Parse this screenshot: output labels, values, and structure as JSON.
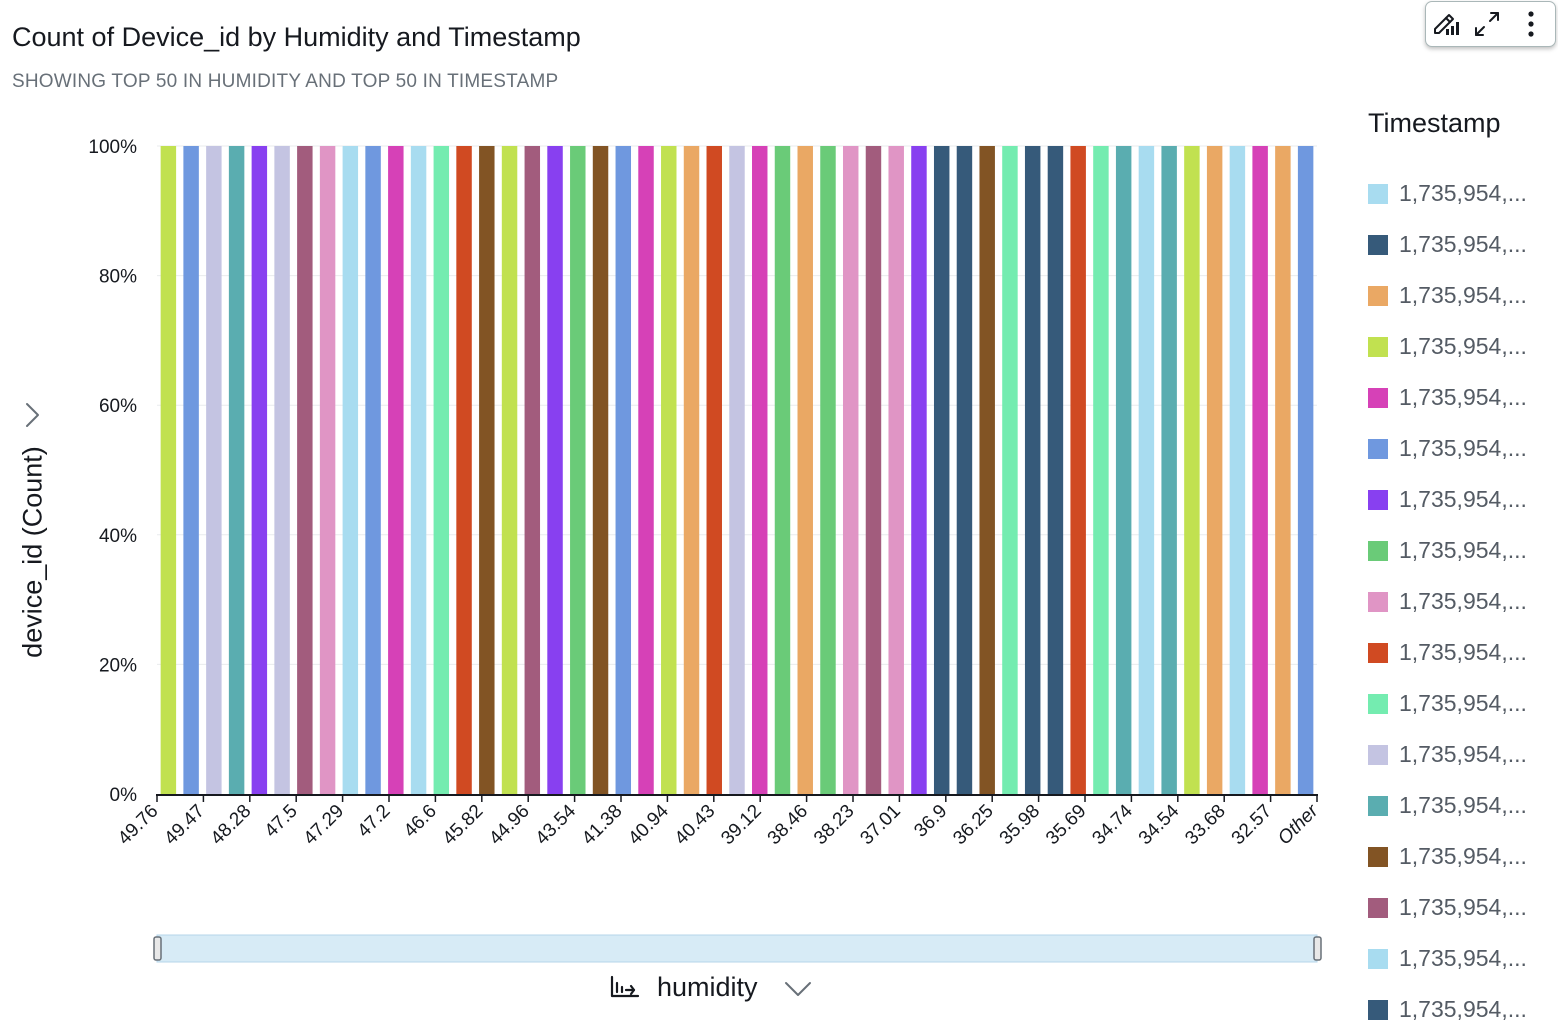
{
  "header": {
    "title": "Count of Device_id by Humidity and Timestamp",
    "subtitle": "SHOWING TOP 50 IN HUMIDITY AND TOP 50 IN TIMESTAMP"
  },
  "toolbar": {
    "icons": [
      "format-visual-icon",
      "expand-icon",
      "more-options-icon"
    ]
  },
  "legend": {
    "title": "Timestamp",
    "items": [
      {
        "label": "1,735,954,...",
        "color": "#a8dcf0"
      },
      {
        "label": "1,735,954,...",
        "color": "#365a7a"
      },
      {
        "label": "1,735,954,...",
        "color": "#eaa864"
      },
      {
        "label": "1,735,954,...",
        "color": "#c1e150"
      },
      {
        "label": "1,735,954,...",
        "color": "#d641b7"
      },
      {
        "label": "1,735,954,...",
        "color": "#6f98df"
      },
      {
        "label": "1,735,954,...",
        "color": "#8840f0"
      },
      {
        "label": "1,735,954,...",
        "color": "#6acb78"
      },
      {
        "label": "1,735,954,...",
        "color": "#e095c5"
      },
      {
        "label": "1,735,954,...",
        "color": "#d04a22"
      },
      {
        "label": "1,735,954,...",
        "color": "#74ecb0"
      },
      {
        "label": "1,735,954,...",
        "color": "#c4c4e2"
      },
      {
        "label": "1,735,954,...",
        "color": "#5aadb0"
      },
      {
        "label": "1,735,954,...",
        "color": "#825424"
      },
      {
        "label": "1,735,954,...",
        "color": "#a25c7d"
      },
      {
        "label": "1,735,954,...",
        "color": "#a8dcf0"
      },
      {
        "label": "1,735,954,...",
        "color": "#365a7a"
      }
    ]
  },
  "x_axis_selector": {
    "label": "humidity",
    "icon": "chart-axis-icon"
  },
  "chart_data": {
    "type": "bar",
    "stacked": "percent",
    "title": "Count of Device_id by Humidity and Timestamp",
    "subtitle": "SHOWING TOP 50 IN HUMIDITY AND TOP 50 IN TIMESTAMP",
    "xlabel": "humidity",
    "ylabel": "device_id (Count)",
    "ylim": [
      0,
      100
    ],
    "yticks": [
      "0%",
      "20%",
      "40%",
      "60%",
      "80%",
      "100%"
    ],
    "grid": true,
    "legend_title": "Timestamp",
    "legend_position": "right",
    "x_ticks": [
      "49.76",
      "49.47",
      "48.28",
      "47.5",
      "47.29",
      "47.2",
      "46.6",
      "45.82",
      "44.96",
      "43.54",
      "41.38",
      "40.94",
      "40.43",
      "39.12",
      "38.46",
      "38.23",
      "37.01",
      "36.9",
      "36.25",
      "35.98",
      "35.69",
      "34.74",
      "34.54",
      "33.68",
      "32.57",
      "Other"
    ],
    "bar_count": 51,
    "values": [
      100,
      100,
      100,
      100,
      100,
      100,
      100,
      100,
      100,
      100,
      100,
      100,
      100,
      100,
      100,
      100,
      100,
      100,
      100,
      100,
      100,
      100,
      100,
      100,
      100,
      100,
      100,
      100,
      100,
      100,
      100,
      100,
      100,
      100,
      100,
      100,
      100,
      100,
      100,
      100,
      100,
      100,
      100,
      100,
      100,
      100,
      100,
      100,
      100,
      100,
      100
    ],
    "bar_colors": [
      "#c1e150",
      "#6f98df",
      "#c4c4e2",
      "#5aadb0",
      "#8840f0",
      "#c4c4e2",
      "#a25c7d",
      "#e095c5",
      "#a8dcf0",
      "#6f98df",
      "#d641b7",
      "#a8dcf0",
      "#74ecb0",
      "#d04a22",
      "#825424",
      "#c1e150",
      "#a25c7d",
      "#8840f0",
      "#6acb78",
      "#825424",
      "#6f98df",
      "#d641b7",
      "#c1e150",
      "#eaa864",
      "#d04a22",
      "#c4c4e2",
      "#d641b7",
      "#6acb78",
      "#eaa864",
      "#6acb78",
      "#e095c5",
      "#a25c7d",
      "#e095c5",
      "#8840f0",
      "#365a7a",
      "#365a7a",
      "#825424",
      "#74ecb0",
      "#365a7a",
      "#365a7a",
      "#d04a22",
      "#74ecb0",
      "#5aadb0",
      "#a8dcf0",
      "#5aadb0",
      "#c1e150",
      "#eaa864",
      "#a8dcf0",
      "#d641b7",
      "#eaa864",
      "#6f98df"
    ]
  }
}
